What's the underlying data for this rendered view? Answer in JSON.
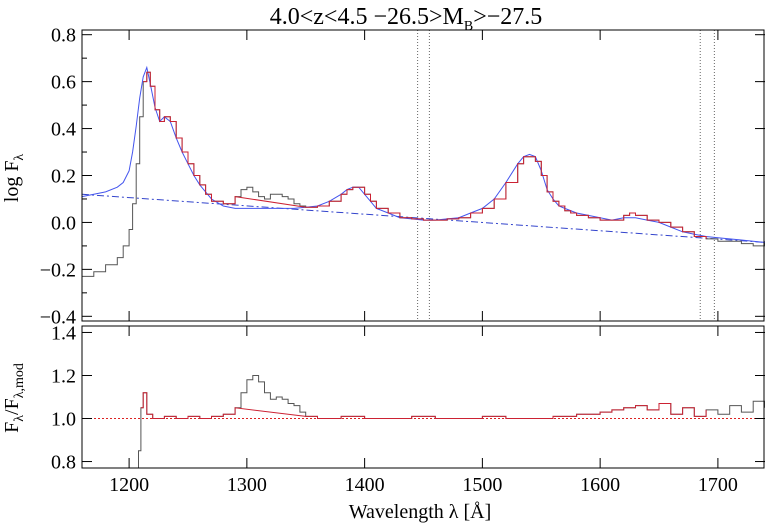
{
  "chart_data": [
    {
      "type": "line",
      "title": "4.0<z<4.5 −26.5>M",
      "title_sub": "B",
      "title_suffix": ">−27.5",
      "ylabel": "log F",
      "ylabel_sub": "λ",
      "xlim": [
        1160,
        1740
      ],
      "ylim": [
        -0.42,
        0.82
      ],
      "yticks": [
        -0.4,
        -0.2,
        0.0,
        0.2,
        0.4,
        0.6,
        0.8
      ],
      "ytick_labels": [
        "−0.4",
        "−0.2",
        "0.0",
        "0.2",
        "0.4",
        "0.6",
        "0.8"
      ],
      "xticks": [
        1200,
        1300,
        1400,
        1500,
        1600,
        1700
      ],
      "vlines": [
        1445,
        1455,
        1685,
        1697
      ],
      "colors": {
        "observed": "#555555",
        "model": "#4455ee",
        "fit_region": "#cc2233",
        "continuum": "#3344cc",
        "vlines": "#666666"
      },
      "continuum": {
        "x": [
          1160,
          1740
        ],
        "y": [
          0.12,
          -0.085
        ]
      },
      "series": [
        {
          "role": "observed-spectrum",
          "x": [
            1160,
            1170,
            1180,
            1190,
            1195,
            1200,
            1203,
            1206,
            1209,
            1212,
            1215,
            1218,
            1222,
            1226,
            1230,
            1235,
            1240,
            1245,
            1250,
            1255,
            1260,
            1265,
            1270,
            1280,
            1290,
            1295,
            1300,
            1305,
            1310,
            1315,
            1320,
            1325,
            1330,
            1335,
            1340,
            1345,
            1350,
            1360,
            1370,
            1380,
            1385,
            1390,
            1395,
            1400,
            1405,
            1410,
            1420,
            1430,
            1440,
            1450,
            1460,
            1470,
            1480,
            1490,
            1500,
            1510,
            1520,
            1530,
            1535,
            1540,
            1545,
            1550,
            1555,
            1560,
            1565,
            1570,
            1575,
            1580,
            1590,
            1600,
            1610,
            1620,
            1625,
            1630,
            1640,
            1650,
            1660,
            1670,
            1680,
            1690,
            1700,
            1710,
            1720,
            1730,
            1740
          ],
          "y": [
            -0.23,
            -0.21,
            -0.18,
            -0.15,
            -0.1,
            -0.03,
            0.08,
            0.25,
            0.45,
            0.6,
            0.64,
            0.58,
            0.48,
            0.43,
            0.45,
            0.43,
            0.36,
            0.3,
            0.25,
            0.2,
            0.16,
            0.12,
            0.09,
            0.08,
            0.11,
            0.14,
            0.15,
            0.13,
            0.11,
            0.1,
            0.12,
            0.12,
            0.11,
            0.1,
            0.08,
            0.07,
            0.065,
            0.07,
            0.09,
            0.12,
            0.14,
            0.15,
            0.15,
            0.12,
            0.09,
            0.06,
            0.04,
            0.02,
            0.015,
            0.01,
            0.01,
            0.015,
            0.02,
            0.04,
            0.06,
            0.1,
            0.17,
            0.25,
            0.28,
            0.28,
            0.26,
            0.2,
            0.13,
            0.09,
            0.07,
            0.05,
            0.04,
            0.03,
            0.02,
            0.01,
            0.01,
            0.03,
            0.04,
            0.03,
            0.01,
            0.0,
            -0.02,
            -0.04,
            -0.06,
            -0.07,
            -0.08,
            -0.08,
            -0.09,
            -0.1,
            -0.08
          ]
        },
        {
          "role": "model-fit",
          "x": [
            1160,
            1180,
            1190,
            1195,
            1200,
            1203,
            1206,
            1209,
            1212,
            1215,
            1218,
            1222,
            1226,
            1230,
            1235,
            1240,
            1245,
            1250,
            1255,
            1260,
            1265,
            1270,
            1280,
            1290,
            1300,
            1310,
            1320,
            1330,
            1340,
            1350,
            1360,
            1370,
            1380,
            1385,
            1390,
            1395,
            1400,
            1405,
            1410,
            1420,
            1430,
            1440,
            1450,
            1460,
            1470,
            1480,
            1490,
            1500,
            1510,
            1520,
            1530,
            1535,
            1540,
            1545,
            1550,
            1555,
            1560,
            1565,
            1570,
            1580,
            1590,
            1600,
            1610,
            1620,
            1630,
            1640,
            1650,
            1660,
            1670,
            1680,
            1690,
            1700,
            1710,
            1720,
            1730,
            1740
          ],
          "y": [
            0.11,
            0.13,
            0.15,
            0.17,
            0.22,
            0.3,
            0.41,
            0.53,
            0.62,
            0.66,
            0.59,
            0.49,
            0.43,
            0.45,
            0.43,
            0.36,
            0.3,
            0.25,
            0.2,
            0.16,
            0.13,
            0.1,
            0.07,
            0.06,
            0.06,
            0.06,
            0.06,
            0.06,
            0.06,
            0.065,
            0.07,
            0.09,
            0.12,
            0.14,
            0.15,
            0.15,
            0.12,
            0.09,
            0.06,
            0.04,
            0.02,
            0.015,
            0.01,
            0.01,
            0.015,
            0.02,
            0.04,
            0.06,
            0.1,
            0.17,
            0.25,
            0.28,
            0.29,
            0.28,
            0.22,
            0.14,
            0.1,
            0.07,
            0.06,
            0.04,
            0.03,
            0.02,
            0.01,
            0.02,
            0.02,
            0.01,
            0.0,
            -0.02,
            -0.04,
            -0.05,
            -0.06,
            -0.065,
            -0.07,
            -0.075,
            -0.08,
            -0.085
          ]
        }
      ]
    },
    {
      "type": "line",
      "xlabel": "Wavelength λ [Å]",
      "ylabel": "F",
      "ylabel_sub": "λ",
      "ylabel_mid": "/F",
      "ylabel_sub2": "λ,mod",
      "xlim": [
        1160,
        1740
      ],
      "ylim": [
        0.77,
        1.43
      ],
      "yticks": [
        0.8,
        1.0,
        1.2,
        1.4
      ],
      "ytick_labels": [
        "0.8",
        "1.0",
        "1.2",
        "1.4"
      ],
      "xticks": [
        1200,
        1300,
        1400,
        1500,
        1600,
        1700
      ],
      "xtick_labels": [
        "1200",
        "1300",
        "1400",
        "1500",
        "1600",
        "1700"
      ],
      "reference_line": 1.0,
      "series": [
        {
          "role": "ratio",
          "x": [
            1205,
            1208,
            1210,
            1212,
            1215,
            1220,
            1230,
            1240,
            1250,
            1260,
            1270,
            1280,
            1290,
            1295,
            1300,
            1305,
            1310,
            1315,
            1320,
            1325,
            1330,
            1335,
            1340,
            1345,
            1350,
            1360,
            1380,
            1400,
            1420,
            1440,
            1460,
            1480,
            1500,
            1520,
            1540,
            1560,
            1580,
            1600,
            1610,
            1620,
            1630,
            1640,
            1650,
            1660,
            1670,
            1680,
            1690,
            1700,
            1710,
            1720,
            1730,
            1740
          ],
          "y": [
            0.77,
            0.85,
            1.05,
            1.12,
            1.02,
            1.0,
            1.01,
            1.0,
            1.01,
            1.0,
            1.01,
            1.02,
            1.05,
            1.12,
            1.18,
            1.2,
            1.17,
            1.12,
            1.09,
            1.1,
            1.09,
            1.07,
            1.06,
            1.03,
            1.01,
            1.0,
            1.01,
            1.0,
            1.0,
            1.01,
            1.0,
            1.0,
            1.01,
            1.0,
            1.0,
            1.01,
            1.02,
            1.03,
            1.04,
            1.05,
            1.06,
            1.04,
            1.07,
            1.02,
            1.05,
            1.01,
            1.04,
            1.02,
            1.06,
            1.03,
            1.08,
            1.05
          ]
        }
      ]
    }
  ]
}
